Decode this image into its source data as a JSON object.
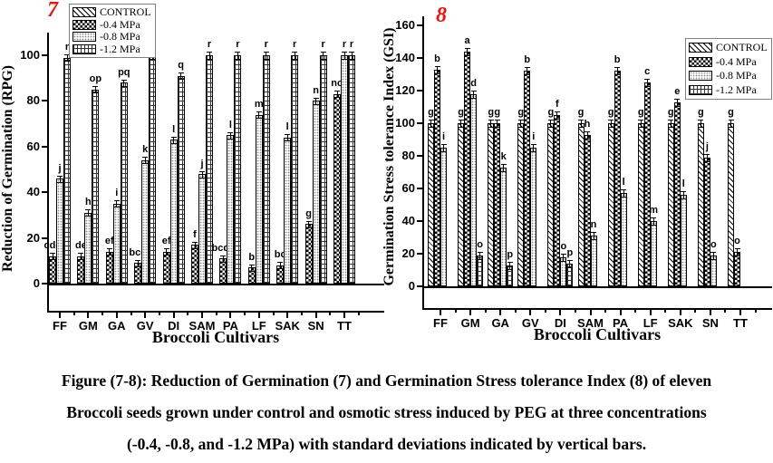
{
  "caption": {
    "line1": "Figure (7-8): Reduction of Germination (7) and Germination Stress tolerance Index (8) of eleven",
    "line2": "Broccoli seeds grown under control and osmotic stress induced by PEG at three concentrations",
    "line3": "(-0.4, -0.8, and -1.2 MPa) with standard deviations indicated by vertical bars."
  },
  "accent_colors": {
    "panel_number_red": "#ee1111"
  },
  "chart_data": [
    {
      "type": "bar",
      "panel_label": "7",
      "title": "",
      "xlabel": "Broccoli Cultivars",
      "ylabel": "Reduction of Germination (RPG)",
      "ylim": [
        0,
        110
      ],
      "yticks": [
        0,
        20,
        40,
        60,
        80,
        100
      ],
      "grid": false,
      "legend_position": "top-left",
      "legend": [
        {
          "label": "CONTROL",
          "pattern": "diagonal-hatch"
        },
        {
          "label": "-0.4 MPa",
          "pattern": "checkerboard"
        },
        {
          "label": "-0.8 MPa",
          "pattern": "dots"
        },
        {
          "label": "-1.2 MPa",
          "pattern": "grid"
        }
      ],
      "categories": [
        "FF",
        "GM",
        "GA",
        "GV",
        "DI",
        "SAM",
        "PA",
        "LF",
        "SAK",
        "SN",
        "TT"
      ],
      "series": [
        {
          "name": "-0.4 MPa",
          "pattern": "checkerboard",
          "values": [
            12,
            12,
            14,
            9,
            14,
            17,
            11,
            7,
            8,
            26,
            83
          ],
          "letters": [
            "cde",
            "de",
            "ef",
            "bcd",
            "ef",
            "f",
            "bcde",
            "b",
            "bc",
            "g",
            "no"
          ]
        },
        {
          "name": "-0.8 MPa",
          "pattern": "dots",
          "values": [
            46,
            31,
            35,
            54,
            63,
            48,
            65,
            74,
            64,
            80,
            100
          ],
          "letters": [
            "j",
            "h",
            "i",
            "k",
            "l",
            "j",
            "l",
            "m",
            "l",
            "n",
            "r"
          ]
        },
        {
          "name": "-1.2 MPa",
          "pattern": "grid",
          "values": [
            99,
            85,
            88,
            100,
            91,
            100,
            100,
            100,
            100,
            100,
            100
          ],
          "letters": [
            "r",
            "op",
            "pq",
            "r",
            "q",
            "r",
            "r",
            "r",
            "r",
            "r",
            "r"
          ]
        }
      ]
    },
    {
      "type": "bar",
      "panel_label": "8",
      "title": "",
      "xlabel": "Broccoli Cultivars",
      "ylabel": "Germination Stress tolerance Index (GSI)",
      "ylim": [
        0,
        165
      ],
      "yticks": [
        0,
        20,
        40,
        60,
        80,
        100,
        120,
        140,
        160
      ],
      "grid": false,
      "legend_position": "top-right",
      "legend": [
        {
          "label": "CONTROL",
          "pattern": "diagonal-hatch"
        },
        {
          "label": "-0.4 MPa",
          "pattern": "checkerboard"
        },
        {
          "label": "-0.8 MPa",
          "pattern": "dots"
        },
        {
          "label": "-1.2 MPa",
          "pattern": "grid"
        }
      ],
      "categories": [
        "FF",
        "GM",
        "GA",
        "GV",
        "DI",
        "SAM",
        "PA",
        "LF",
        "SAK",
        "SN",
        "TT"
      ],
      "series": [
        {
          "name": "CONTROL",
          "pattern": "diagonal-hatch",
          "values": [
            100,
            100,
            100,
            100,
            100,
            100,
            100,
            100,
            100,
            100,
            100
          ],
          "letters": [
            "g",
            "g",
            "g",
            "g",
            "g",
            "g",
            "g",
            "g",
            "g",
            "g",
            "g"
          ]
        },
        {
          "name": "-0.4 MPa",
          "pattern": "checkerboard",
          "values": [
            133,
            144,
            100,
            132,
            105,
            93,
            132,
            125,
            113,
            79,
            21
          ],
          "letters": [
            "b",
            "a",
            "g",
            "b",
            "f",
            "h",
            "b",
            "c",
            "e",
            "j",
            "o"
          ]
        },
        {
          "name": "-0.8 MPa",
          "pattern": "dots",
          "values": [
            85,
            118,
            73,
            85,
            18,
            31,
            57,
            40,
            56,
            19,
            null
          ],
          "letters": [
            "i",
            "d",
            "k",
            "i",
            "o",
            "n",
            "l",
            "m",
            "l",
            "o",
            ""
          ]
        },
        {
          "name": "-1.2 MPa",
          "pattern": "grid",
          "values": [
            null,
            19,
            13,
            null,
            14,
            null,
            null,
            null,
            null,
            null,
            null
          ],
          "letters": [
            "",
            "o",
            "p",
            "",
            "p",
            "",
            "",
            "",
            "",
            "",
            ""
          ]
        }
      ]
    }
  ]
}
